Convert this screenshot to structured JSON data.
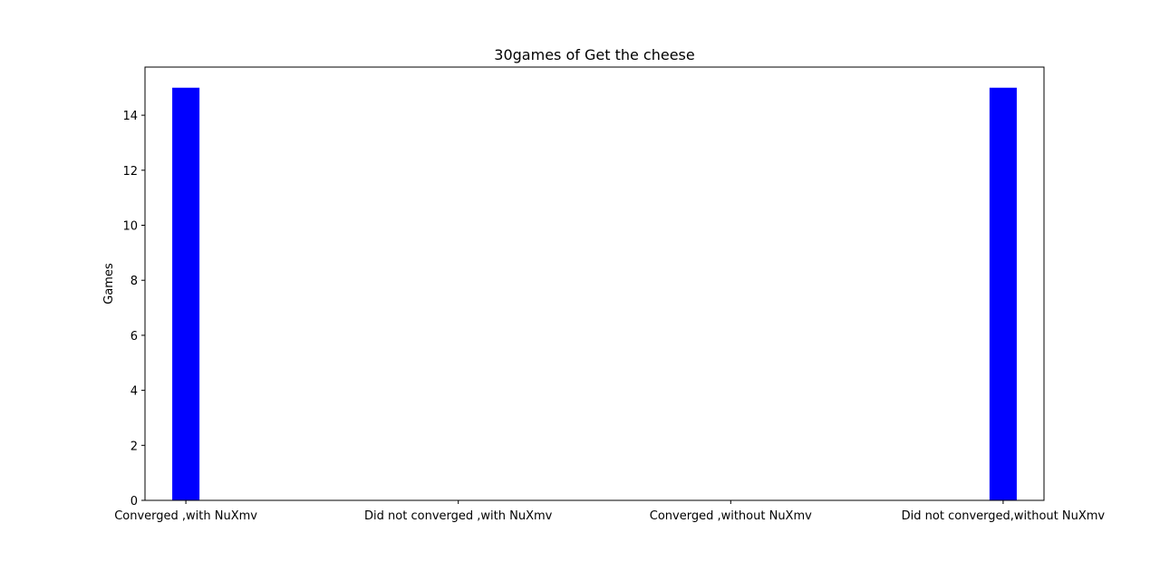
{
  "chart_data": {
    "type": "bar",
    "title": "30games of Get the cheese",
    "xlabel": "",
    "ylabel": "Games",
    "categories": [
      "Converged ,with NuXmv",
      "Did not converged ,with NuXmv",
      "Converged ,without NuXmv",
      "Did not converged,without NuXmv"
    ],
    "values": [
      15,
      0,
      0,
      15
    ],
    "ylim": [
      0,
      15.75
    ],
    "yticks": [
      0,
      2,
      4,
      6,
      8,
      10,
      12,
      14
    ],
    "bar_color": "#0000ff",
    "grid": false
  }
}
